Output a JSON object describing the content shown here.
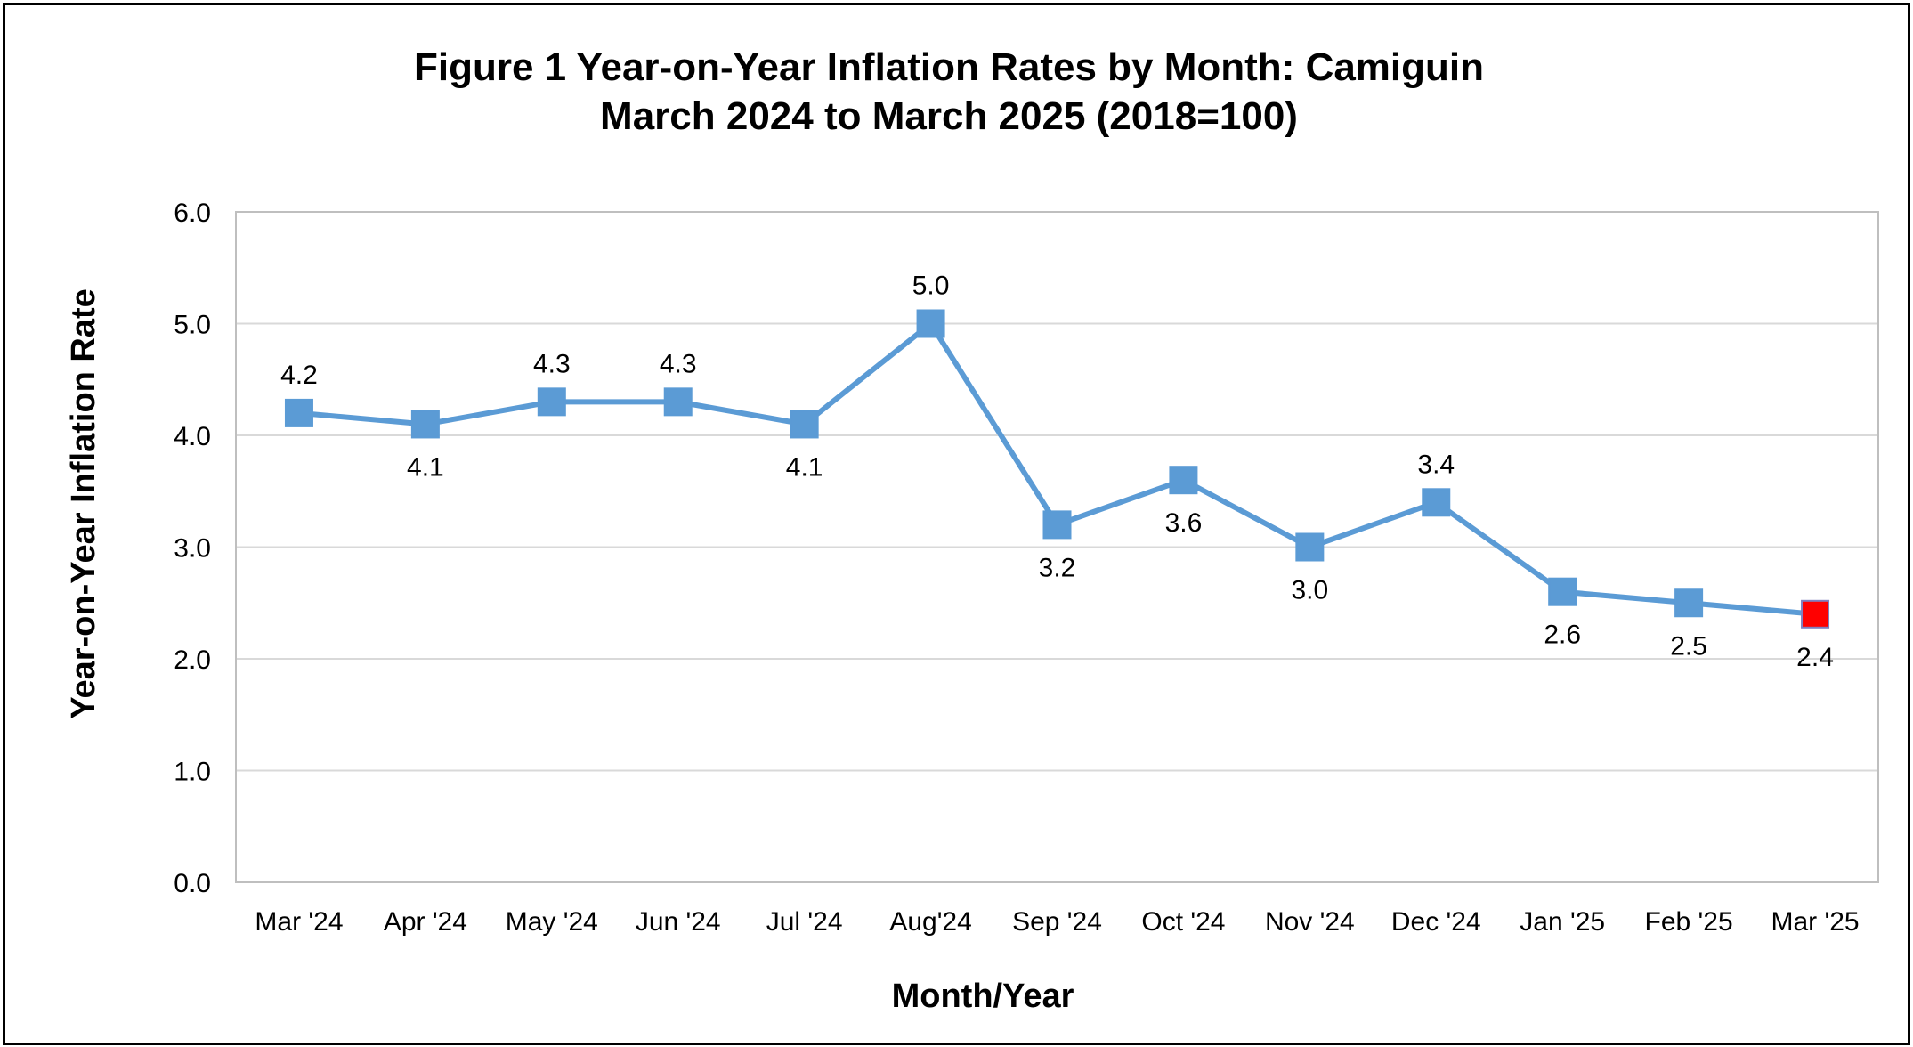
{
  "chart_data": {
    "type": "line",
    "title": "Figure 1  Year-on-Year Inflation Rates by Month: Camiguin",
    "subtitle": "March 2024 to March 2025 (2018=100)",
    "xlabel": "Month/Year",
    "ylabel": "Year-on-Year Inflation Rate",
    "ylim": [
      0,
      6
    ],
    "yticks": [
      "0.0",
      "1.0",
      "2.0",
      "3.0",
      "4.0",
      "5.0",
      "6.0"
    ],
    "categories": [
      "Mar '24",
      "Apr '24",
      "May '24",
      "Jun '24",
      "Jul '24",
      "Aug'24",
      "Sep '24",
      "Oct '24",
      "Nov '24",
      "Dec '24",
      "Jan '25",
      "Feb '25",
      "Mar '25"
    ],
    "series": [
      {
        "values": [
          4.2,
          4.1,
          4.3,
          4.3,
          4.1,
          5.0,
          3.2,
          3.6,
          3.0,
          3.4,
          2.6,
          2.5,
          2.4
        ],
        "labels": [
          "4.2",
          "4.1",
          "4.3",
          "4.3",
          "4.1",
          "5.0",
          "3.2",
          "3.6",
          "3.0",
          "3.4",
          "2.6",
          "2.5",
          "2.4"
        ],
        "label_position": [
          "above",
          "below",
          "above",
          "above",
          "below",
          "above",
          "below",
          "below",
          "below",
          "above",
          "below",
          "below",
          "below"
        ]
      }
    ],
    "grid": true,
    "colors": {
      "line": "#5b9bd5",
      "marker": "#5b9bd5",
      "highlight_marker": "#ff0000",
      "gridline": "#d9d9d9",
      "plot_border": "#bfbfbf"
    },
    "highlight_index": 12
  }
}
